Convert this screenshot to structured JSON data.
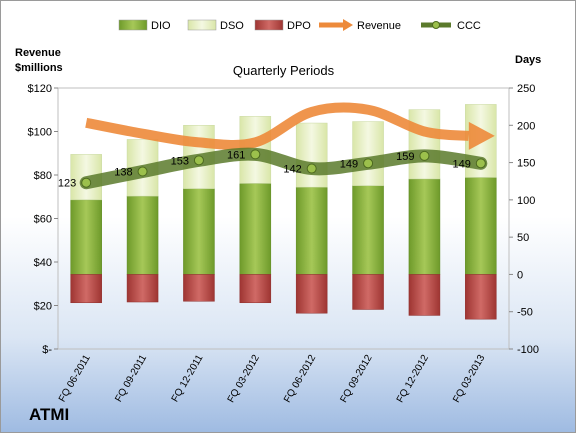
{
  "chart_data": {
    "type": "bar",
    "title": "Quarterly Periods",
    "left_axis_title": [
      "Revenue",
      "$millions"
    ],
    "right_axis_title": "Days",
    "left_axis": {
      "min": 0,
      "max": 120,
      "ticks": [
        "$-",
        "$20",
        "$40",
        "$60",
        "$80",
        "$100",
        "$120"
      ]
    },
    "right_axis": {
      "min": -100,
      "max": 250,
      "ticks": [
        "-100",
        "-50",
        "0",
        "50",
        "100",
        "150",
        "200",
        "250"
      ]
    },
    "categories": [
      "FQ 06-2011",
      "FQ 09-2011",
      "FQ 12-2011",
      "FQ 03-2012",
      "FQ 06-2012",
      "FQ 09-2012",
      "FQ 12-2012",
      "FQ 03-2013"
    ],
    "series": [
      {
        "name": "DIO",
        "color": "#8db03c",
        "values": [
          100,
          105,
          115,
          122,
          117,
          119,
          128,
          130
        ]
      },
      {
        "name": "DSO",
        "color": "#e6efc6",
        "values": [
          61,
          76,
          85,
          90,
          86,
          86,
          93,
          98
        ]
      },
      {
        "name": "DPO",
        "color": "#c0504d",
        "values": [
          -38,
          -37,
          -36,
          -38,
          -52,
          -47,
          -55,
          -60
        ]
      },
      {
        "name": "Revenue",
        "color": "#ed8a3a",
        "values": [
          104,
          99,
          95,
          95,
          109,
          110,
          100,
          98
        ]
      },
      {
        "name": "CCC",
        "color": "#6f8a3a",
        "values": [
          123,
          138,
          153,
          161,
          142,
          149,
          159,
          149
        ]
      }
    ],
    "ccc_labels": [
      "123",
      "138",
      "153",
      "161",
      "142",
      "149",
      "159",
      "149"
    ],
    "legend_position": "top"
  },
  "company": "ATMI"
}
